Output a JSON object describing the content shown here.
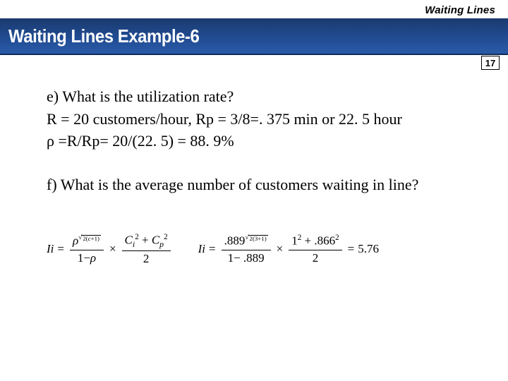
{
  "colors": {
    "title_bar_gradient_top": "#1a3a6e",
    "title_bar_gradient_mid": "#204a8f",
    "title_bar_gradient_bottom": "#2a5aa8",
    "title_text": "#ffffff",
    "body_text": "#000000",
    "background": "#ffffff",
    "rule": "#0f2b57"
  },
  "header": {
    "top_label": "Waiting Lines",
    "title": "Waiting Lines Example-6",
    "page_number": "17"
  },
  "body": {
    "e": {
      "question": "e) What is the utilization rate?",
      "line1": "R = 20 customers/hour, Rp = 3/8=. 375 min or 22. 5 hour",
      "line2": "ρ =R/Rp= 20/(22. 5) =  88. 9%"
    },
    "f": {
      "question": "f) What is the average number of customers waiting in line?"
    }
  },
  "formula": {
    "general": {
      "lhs": "Ii",
      "frac1_num_base": "ρ",
      "frac1_num_exp_prefix": "2(",
      "frac1_num_exp_var": "c",
      "frac1_num_exp_suffix": "+1)",
      "frac1_den_pre": "1−",
      "frac1_den_var": "ρ",
      "frac2_num_t1_base": "C",
      "frac2_num_t1_sub": "i",
      "frac2_num_t1_sup": "2",
      "frac2_num_plus": " + ",
      "frac2_num_t2_base": "C",
      "frac2_num_t2_sub": "p",
      "frac2_num_t2_sup": "2",
      "frac2_den": "2"
    },
    "numeric": {
      "lhs": "Ii",
      "frac1_num_base": ".889",
      "frac1_num_exp": "2(3+1)",
      "frac1_den": "1− .889",
      "frac2_num": "1² + .866²",
      "frac2_num_t1": "1",
      "frac2_num_t1_sup": "2",
      "frac2_num_plus": " + ",
      "frac2_num_t2": ".866",
      "frac2_num_t2_sup": "2",
      "frac2_den": "2",
      "result": "5.76"
    },
    "symbols": {
      "eq": "=",
      "times": "×",
      "sqrt": "√"
    }
  }
}
